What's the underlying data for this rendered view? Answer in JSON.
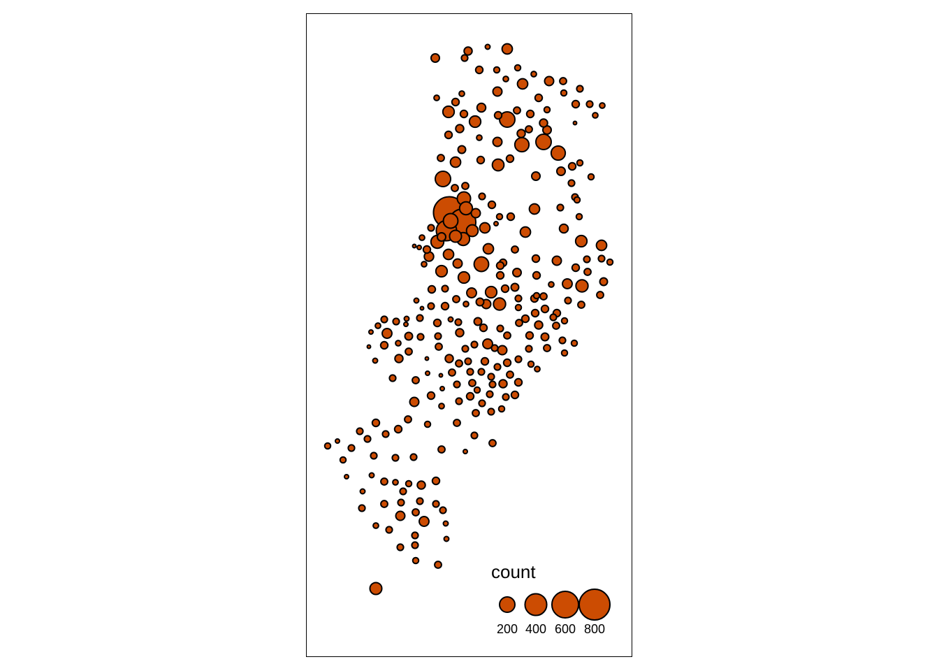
{
  "colors": {
    "bubble_fill": "#cc4c02",
    "bubble_stroke": "#000000",
    "frame": "#000000",
    "background": "#ffffff"
  },
  "chart_data": {
    "type": "scatter",
    "subtype": "proportional-symbol-map",
    "value_field": "count",
    "legend": {
      "title": "count",
      "placement": "bottom-right",
      "entries": [
        {
          "label": "200",
          "value": 200
        },
        {
          "label": "400",
          "value": 400
        },
        {
          "label": "600",
          "value": 600
        },
        {
          "label": "800",
          "value": 800
        }
      ]
    },
    "xlim": [
      438,
      905
    ],
    "ylim": [
      20,
      940
    ],
    "points": [
      [
        623,
        83,
        60
      ],
      [
        670,
        73,
        55
      ],
      [
        698,
        67,
        20
      ],
      [
        726,
        70,
        90
      ],
      [
        665,
        83,
        35
      ],
      [
        686,
        100,
        45
      ],
      [
        711,
        100,
        30
      ],
      [
        741,
        97,
        30
      ],
      [
        764,
        106,
        25
      ],
      [
        786,
        116,
        70
      ],
      [
        806,
        116,
        40
      ],
      [
        724,
        113,
        25
      ],
      [
        748,
        120,
        90
      ],
      [
        712,
        131,
        70
      ],
      [
        661,
        134,
        25
      ],
      [
        625,
        140,
        25
      ],
      [
        652,
        146,
        45
      ],
      [
        642,
        160,
        110
      ],
      [
        664,
        163,
        45
      ],
      [
        689,
        154,
        65
      ],
      [
        713,
        165,
        45
      ],
      [
        726,
        171,
        200
      ],
      [
        740,
        158,
        40
      ],
      [
        759,
        163,
        45
      ],
      [
        783,
        157,
        30
      ],
      [
        771,
        140,
        45
      ],
      [
        807,
        133,
        30
      ],
      [
        830,
        127,
        35
      ],
      [
        824,
        149,
        45
      ],
      [
        844,
        149,
        35
      ],
      [
        862,
        151,
        25
      ],
      [
        852,
        165,
        25
      ],
      [
        823,
        176,
        10
      ],
      [
        680,
        174,
        110
      ],
      [
        658,
        184,
        55
      ],
      [
        778,
        176,
        55
      ],
      [
        783,
        186,
        60
      ],
      [
        757,
        185,
        40
      ],
      [
        746,
        191,
        55
      ],
      [
        642,
        193,
        45
      ],
      [
        686,
        197,
        25
      ],
      [
        712,
        203,
        70
      ],
      [
        747,
        207,
        170
      ],
      [
        778,
        203,
        200
      ],
      [
        661,
        214,
        50
      ],
      [
        799,
        219,
        170
      ],
      [
        652,
        232,
        90
      ],
      [
        688,
        229,
        45
      ],
      [
        713,
        236,
        115
      ],
      [
        730,
        227,
        45
      ],
      [
        803,
        245,
        60
      ],
      [
        819,
        238,
        45
      ],
      [
        830,
        233,
        30
      ],
      [
        846,
        253,
        30
      ],
      [
        631,
        226,
        40
      ],
      [
        634,
        256,
        200
      ],
      [
        651,
        269,
        40
      ],
      [
        666,
        266,
        40
      ],
      [
        767,
        252,
        60
      ],
      [
        818,
        262,
        35
      ],
      [
        664,
        284,
        150
      ],
      [
        690,
        281,
        35
      ],
      [
        823,
        282,
        35
      ],
      [
        643,
        304,
        840
      ],
      [
        667,
        298,
        140
      ],
      [
        681,
        305,
        70
      ],
      [
        704,
        293,
        45
      ],
      [
        715,
        310,
        30
      ],
      [
        765,
        299,
        90
      ],
      [
        802,
        297,
        35
      ],
      [
        826,
        286,
        30
      ],
      [
        662,
        318,
        600
      ],
      [
        645,
        316,
        180
      ],
      [
        639,
        330,
        350
      ],
      [
        676,
        330,
        115
      ],
      [
        694,
        326,
        90
      ],
      [
        710,
        320,
        15
      ],
      [
        731,
        310,
        45
      ],
      [
        752,
        332,
        90
      ],
      [
        807,
        327,
        65
      ],
      [
        829,
        310,
        30
      ],
      [
        617,
        326,
        35
      ],
      [
        632,
        339,
        60
      ],
      [
        652,
        338,
        120
      ],
      [
        663,
        342,
        140
      ],
      [
        626,
        346,
        140
      ],
      [
        604,
        340,
        25
      ],
      [
        600,
        354,
        15
      ],
      [
        593,
        352,
        10
      ],
      [
        611,
        357,
        45
      ],
      [
        699,
        356,
        90
      ],
      [
        737,
        357,
        40
      ],
      [
        614,
        367,
        75
      ],
      [
        642,
        364,
        90
      ],
      [
        655,
        377,
        70
      ],
      [
        689,
        378,
        180
      ],
      [
        720,
        376,
        45
      ],
      [
        767,
        370,
        45
      ],
      [
        797,
        373,
        70
      ],
      [
        832,
        345,
        110
      ],
      [
        861,
        351,
        90
      ],
      [
        840,
        371,
        35
      ],
      [
        861,
        370,
        35
      ],
      [
        873,
        375,
        30
      ],
      [
        607,
        378,
        25
      ],
      [
        632,
        388,
        110
      ],
      [
        664,
        397,
        110
      ],
      [
        716,
        380,
        45
      ],
      [
        740,
        390,
        60
      ],
      [
        716,
        394,
        45
      ],
      [
        768,
        394,
        45
      ],
      [
        824,
        383,
        45
      ],
      [
        841,
        389,
        40
      ],
      [
        864,
        403,
        50
      ],
      [
        618,
        414,
        45
      ],
      [
        637,
        413,
        35
      ],
      [
        675,
        419,
        80
      ],
      [
        703,
        418,
        110
      ],
      [
        723,
        413,
        45
      ],
      [
        737,
        411,
        50
      ],
      [
        789,
        407,
        25
      ],
      [
        812,
        406,
        80
      ],
      [
        833,
        409,
        125
      ],
      [
        768,
        423,
        30
      ],
      [
        742,
        427,
        35
      ],
      [
        765,
        427,
        45
      ],
      [
        778,
        424,
        40
      ],
      [
        813,
        430,
        35
      ],
      [
        832,
        436,
        40
      ],
      [
        859,
        422,
        40
      ],
      [
        596,
        430,
        20
      ],
      [
        617,
        438,
        35
      ],
      [
        637,
        438,
        45
      ],
      [
        653,
        428,
        40
      ],
      [
        667,
        435,
        25
      ],
      [
        687,
        432,
        50
      ],
      [
        696,
        435,
        70
      ],
      [
        715,
        435,
        125
      ],
      [
        742,
        440,
        30
      ],
      [
        780,
        442,
        45
      ],
      [
        766,
        448,
        45
      ],
      [
        797,
        448,
        45
      ],
      [
        604,
        441,
        10
      ],
      [
        601,
        455,
        35
      ],
      [
        550,
        457,
        35
      ],
      [
        567,
        460,
        35
      ],
      [
        582,
        456,
        20
      ],
      [
        581,
        464,
        15
      ],
      [
        541,
        466,
        25
      ],
      [
        531,
        475,
        15
      ],
      [
        554,
        477,
        80
      ],
      [
        585,
        481,
        50
      ],
      [
        570,
        491,
        25
      ],
      [
        550,
        494,
        45
      ],
      [
        528,
        496,
        10
      ],
      [
        626,
        462,
        45
      ],
      [
        645,
        457,
        20
      ],
      [
        656,
        461,
        35
      ],
      [
        684,
        460,
        50
      ],
      [
        692,
        469,
        45
      ],
      [
        716,
        470,
        35
      ],
      [
        743,
        462,
        40
      ],
      [
        752,
        456,
        45
      ],
      [
        771,
        465,
        55
      ],
      [
        792,
        454,
        35
      ],
      [
        796,
        466,
        40
      ],
      [
        808,
        459,
        30
      ],
      [
        602,
        482,
        35
      ],
      [
        627,
        481,
        35
      ],
      [
        658,
        476,
        55
      ],
      [
        666,
        499,
        35
      ],
      [
        679,
        493,
        35
      ],
      [
        698,
        492,
        80
      ],
      [
        708,
        498,
        35
      ],
      [
        719,
        501,
        70
      ],
      [
        726,
        480,
        40
      ],
      [
        758,
        480,
        45
      ],
      [
        780,
        482,
        50
      ],
      [
        805,
        487,
        35
      ],
      [
        822,
        491,
        30
      ],
      [
        628,
        496,
        40
      ],
      [
        585,
        503,
        40
      ],
      [
        571,
        513,
        55
      ],
      [
        537,
        516,
        20
      ],
      [
        611,
        513,
        10
      ],
      [
        643,
        513,
        55
      ],
      [
        657,
        520,
        40
      ],
      [
        670,
        517,
        35
      ],
      [
        694,
        517,
        45
      ],
      [
        712,
        525,
        35
      ],
      [
        726,
        519,
        45
      ],
      [
        742,
        514,
        35
      ],
      [
        757,
        499,
        35
      ],
      [
        783,
        498,
        40
      ],
      [
        808,
        505,
        30
      ],
      [
        760,
        521,
        30
      ],
      [
        769,
        528,
        25
      ],
      [
        612,
        534,
        15
      ],
      [
        631,
        537,
        10
      ],
      [
        647,
        533,
        40
      ],
      [
        673,
        532,
        35
      ],
      [
        689,
        532,
        35
      ],
      [
        703,
        539,
        35
      ],
      [
        730,
        536,
        40
      ],
      [
        742,
        547,
        45
      ],
      [
        595,
        544,
        40
      ],
      [
        562,
        541,
        35
      ],
      [
        633,
        556,
        15
      ],
      [
        654,
        550,
        35
      ],
      [
        676,
        548,
        40
      ],
      [
        683,
        558,
        30
      ],
      [
        705,
        550,
        35
      ],
      [
        720,
        549,
        55
      ],
      [
        737,
        565,
        45
      ],
      [
        593,
        575,
        70
      ],
      [
        617,
        566,
        45
      ],
      [
        673,
        567,
        45
      ],
      [
        701,
        564,
        35
      ],
      [
        724,
        568,
        35
      ],
      [
        632,
        581,
        25
      ],
      [
        657,
        574,
        35
      ],
      [
        690,
        577,
        35
      ],
      [
        718,
        585,
        30
      ],
      [
        681,
        591,
        40
      ],
      [
        703,
        589,
        35
      ],
      [
        538,
        605,
        45
      ],
      [
        584,
        600,
        40
      ],
      [
        570,
        614,
        45
      ],
      [
        612,
        607,
        30
      ],
      [
        654,
        605,
        40
      ],
      [
        515,
        617,
        35
      ],
      [
        526,
        628,
        35
      ],
      [
        552,
        621,
        35
      ],
      [
        483,
        631,
        15
      ],
      [
        469,
        638,
        30
      ],
      [
        503,
        641,
        35
      ],
      [
        679,
        623,
        35
      ],
      [
        705,
        634,
        40
      ],
      [
        632,
        643,
        40
      ],
      [
        666,
        646,
        15
      ],
      [
        491,
        658,
        30
      ],
      [
        535,
        652,
        35
      ],
      [
        566,
        655,
        35
      ],
      [
        592,
        654,
        35
      ],
      [
        496,
        682,
        15
      ],
      [
        532,
        680,
        20
      ],
      [
        550,
        689,
        40
      ],
      [
        566,
        690,
        25
      ],
      [
        585,
        692,
        30
      ],
      [
        603,
        694,
        55
      ],
      [
        624,
        688,
        45
      ],
      [
        519,
        703,
        20
      ],
      [
        577,
        703,
        35
      ],
      [
        550,
        721,
        40
      ],
      [
        574,
        719,
        35
      ],
      [
        601,
        717,
        35
      ],
      [
        624,
        721,
        35
      ],
      [
        518,
        727,
        35
      ],
      [
        634,
        730,
        35
      ],
      [
        573,
        738,
        70
      ],
      [
        595,
        733,
        40
      ],
      [
        607,
        746,
        80
      ],
      [
        538,
        752,
        25
      ],
      [
        557,
        758,
        35
      ],
      [
        638,
        749,
        20
      ],
      [
        594,
        766,
        35
      ],
      [
        639,
        771,
        20
      ],
      [
        573,
        783,
        35
      ],
      [
        594,
        780,
        35
      ],
      [
        595,
        802,
        30
      ],
      [
        627,
        808,
        40
      ],
      [
        538,
        842,
        120
      ]
    ]
  }
}
